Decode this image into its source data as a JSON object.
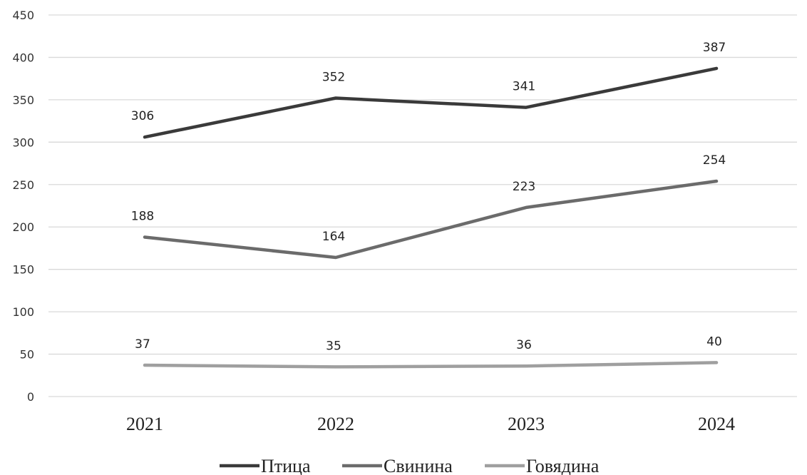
{
  "chart_data": {
    "type": "line",
    "categories": [
      "2021",
      "2022",
      "2023",
      "2024"
    ],
    "series": [
      {
        "name": "Птица",
        "values": [
          306,
          352,
          341,
          387
        ],
        "color": "#3a3a3a"
      },
      {
        "name": "Свинина",
        "values": [
          188,
          164,
          223,
          254
        ],
        "color": "#6b6b6b"
      },
      {
        "name": "Говядина",
        "values": [
          37,
          35,
          36,
          40
        ],
        "color": "#9f9f9f"
      }
    ],
    "ylim": [
      0,
      450
    ],
    "yticks": [
      "0",
      "50",
      "100",
      "150",
      "200",
      "250",
      "300",
      "350",
      "400",
      "450"
    ],
    "grid": true,
    "legend_position": "bottom"
  }
}
